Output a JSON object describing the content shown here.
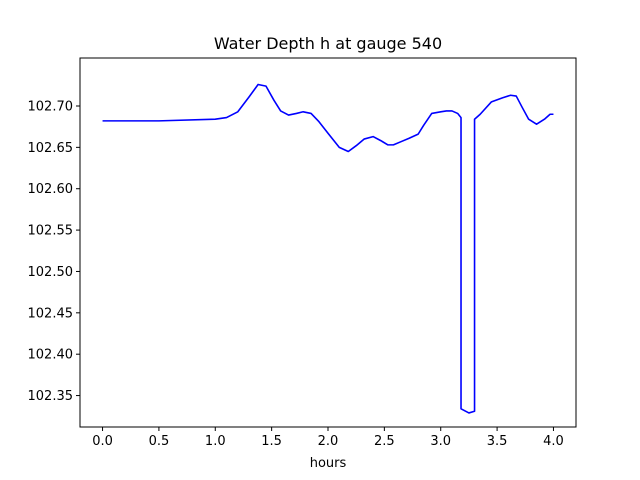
{
  "chart_data": {
    "type": "line",
    "title": "Water Depth h at gauge 540",
    "xlabel": "hours",
    "ylabel": "",
    "xlim": [
      -0.2,
      4.2
    ],
    "ylim": [
      102.312,
      102.758
    ],
    "grid": false,
    "x_ticks": [
      {
        "value": 0.0,
        "label": "0.0"
      },
      {
        "value": 0.5,
        "label": "0.5"
      },
      {
        "value": 1.0,
        "label": "1.0"
      },
      {
        "value": 1.5,
        "label": "1.5"
      },
      {
        "value": 2.0,
        "label": "2.0"
      },
      {
        "value": 2.5,
        "label": "2.5"
      },
      {
        "value": 3.0,
        "label": "3.0"
      },
      {
        "value": 3.5,
        "label": "3.5"
      },
      {
        "value": 4.0,
        "label": "4.0"
      }
    ],
    "y_ticks": [
      {
        "value": 102.35,
        "label": "102.35"
      },
      {
        "value": 102.4,
        "label": "102.40"
      },
      {
        "value": 102.45,
        "label": "102.45"
      },
      {
        "value": 102.5,
        "label": "102.50"
      },
      {
        "value": 102.55,
        "label": "102.55"
      },
      {
        "value": 102.6,
        "label": "102.60"
      },
      {
        "value": 102.65,
        "label": "102.65"
      },
      {
        "value": 102.7,
        "label": "102.70"
      }
    ],
    "series": [
      {
        "color": "#0000ff",
        "x": [
          0.0,
          0.5,
          1.0,
          1.1,
          1.2,
          1.3,
          1.38,
          1.45,
          1.52,
          1.58,
          1.65,
          1.72,
          1.78,
          1.85,
          1.92,
          2.0,
          2.1,
          2.18,
          2.25,
          2.32,
          2.4,
          2.47,
          2.53,
          2.58,
          2.65,
          2.72,
          2.8,
          2.85,
          2.92,
          3.0,
          3.05,
          3.1,
          3.15,
          3.18,
          3.18,
          3.25,
          3.3,
          3.3,
          3.35,
          3.45,
          3.55,
          3.62,
          3.67,
          3.72,
          3.78,
          3.85,
          3.92,
          3.97,
          4.0
        ],
        "y": [
          102.682,
          102.682,
          102.684,
          102.686,
          102.693,
          102.711,
          102.726,
          102.724,
          102.707,
          102.694,
          102.689,
          102.691,
          102.693,
          102.691,
          102.681,
          102.667,
          102.65,
          102.645,
          102.652,
          102.66,
          102.663,
          102.658,
          102.653,
          102.653,
          102.657,
          102.661,
          102.666,
          102.677,
          102.691,
          102.693,
          102.694,
          102.694,
          102.691,
          102.686,
          102.334,
          102.329,
          102.331,
          102.684,
          102.69,
          102.705,
          102.71,
          102.713,
          102.712,
          102.699,
          102.684,
          102.678,
          102.684,
          102.69,
          102.69
        ]
      }
    ]
  }
}
